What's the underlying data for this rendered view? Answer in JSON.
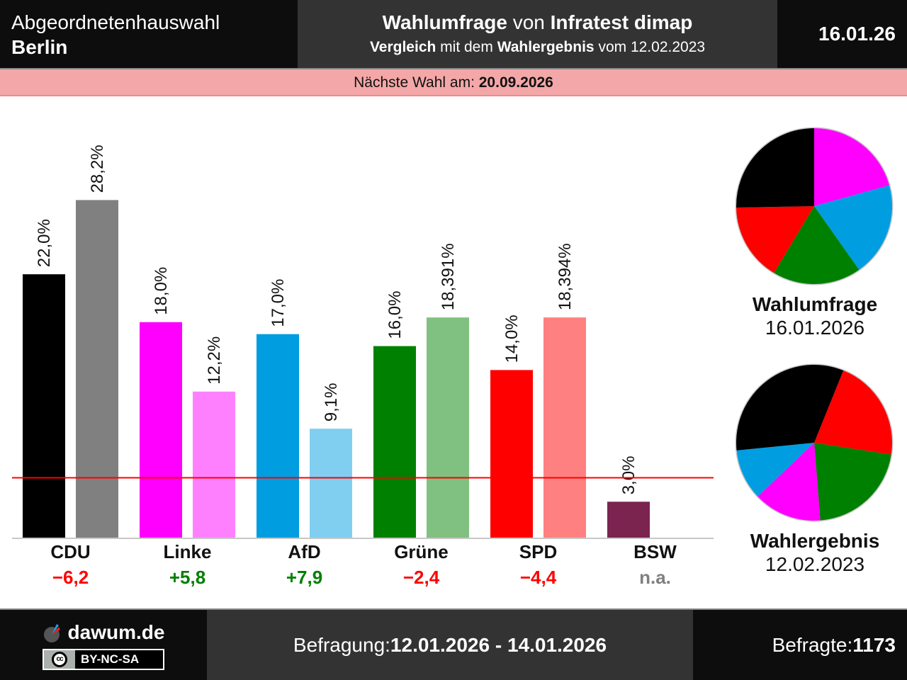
{
  "header": {
    "election_type": "Abgeordnetenhauswahl",
    "region": "Berlin",
    "title_bold_1": "Wahlumfrage",
    "title_mid": " von ",
    "title_bold_2": "Infratest dimap",
    "subtitle_bold_1": "Vergleich",
    "subtitle_mid": " mit dem ",
    "subtitle_bold_2": "Wahlergebnis",
    "subtitle_tail": " vom 12.02.2023",
    "date_short": "16.01.26"
  },
  "next_election": {
    "label": "Nächste Wahl am: ",
    "date": "20.09.2026"
  },
  "chart_data": {
    "type": "bar",
    "title": "Wahlumfrage von Infratest dimap – Vergleich mit dem Wahlergebnis vom 12.02.2023",
    "categories": [
      "CDU",
      "Linke",
      "AfD",
      "Grüne",
      "SPD",
      "BSW"
    ],
    "series": [
      {
        "name": "Wahlumfrage 16.01.2026",
        "values": [
          22.0,
          18.0,
          17.0,
          16.0,
          14.0,
          3.0
        ],
        "labels": [
          "22,0%",
          "18,0%",
          "17,0%",
          "16,0%",
          "14,0%",
          "3,0%"
        ],
        "colors": [
          "#000000",
          "#ff00ff",
          "#009ee0",
          "#008000",
          "#ff0000",
          "#7b2450"
        ]
      },
      {
        "name": "Wahlergebnis 12.02.2023",
        "values": [
          28.2,
          12.2,
          9.1,
          18.391,
          18.394,
          null
        ],
        "labels": [
          "28,2%",
          "12,2%",
          "9,1%",
          "18,391%",
          "18,394%",
          null
        ],
        "colors": [
          "#808080",
          "#ff80ff",
          "#80cef0",
          "#80c080",
          "#ff8080",
          null
        ]
      }
    ],
    "differences": [
      "−6,2",
      "+5,8",
      "+7,9",
      "−2,4",
      "−4,4",
      "n.a."
    ],
    "difference_colors": [
      "#ff0000",
      "#008000",
      "#008000",
      "#ff0000",
      "#ff0000",
      "#808080"
    ],
    "threshold": 5,
    "threshold_color": "#ff0000",
    "ylim": [
      0,
      30
    ],
    "xlabel": "",
    "ylabel": "",
    "grid": false
  },
  "pies": [
    {
      "title": "Wahlumfrage",
      "date": "16.01.2026",
      "slices": [
        {
          "party": "Linke",
          "value": 18.0,
          "color": "#ff00ff"
        },
        {
          "party": "AfD",
          "value": 17.0,
          "color": "#009ee0"
        },
        {
          "party": "Grüne",
          "value": 16.0,
          "color": "#008000"
        },
        {
          "party": "SPD",
          "value": 14.0,
          "color": "#ff0000"
        },
        {
          "party": "CDU",
          "value": 22.0,
          "color": "#000000"
        }
      ]
    },
    {
      "title": "Wahlergebnis",
      "date": "12.02.2023",
      "slices": [
        {
          "party": "SPD",
          "value": 18.394,
          "color": "#ff0000"
        },
        {
          "party": "Grüne",
          "value": 18.391,
          "color": "#008000"
        },
        {
          "party": "Linke",
          "value": 12.2,
          "color": "#ff00ff"
        },
        {
          "party": "AfD",
          "value": 9.1,
          "color": "#009ee0"
        },
        {
          "party": "CDU",
          "value": 28.2,
          "color": "#000000"
        }
      ]
    }
  ],
  "footer": {
    "brand": "dawum.de",
    "license": "BY-NC-SA",
    "license_icon": "cc",
    "survey_label": "Befragung: ",
    "survey_period": "12.01.2026 - 14.01.2026",
    "respondents_label": "Befragte: ",
    "respondents": "1173"
  }
}
